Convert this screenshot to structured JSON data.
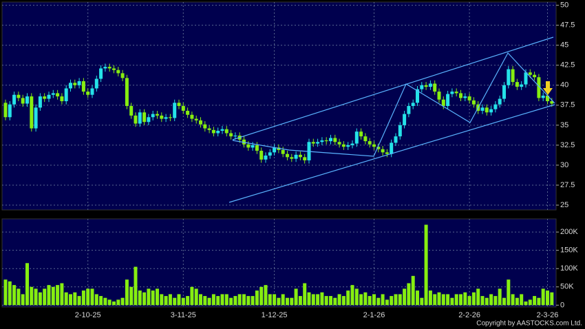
{
  "chart_data": [
    {
      "type": "candlestick",
      "open": [
        37.8,
        36.0,
        37.6,
        38.8,
        38.4,
        37.7,
        38.6,
        34.6,
        37.2,
        38.6,
        38.3,
        38.8,
        39.0,
        38.6,
        38.0,
        39.6,
        40.3,
        40.0,
        40.5,
        39.2,
        38.8,
        39.6,
        40.8,
        42.1,
        42.3,
        42.1,
        41.9,
        41.5,
        40.9,
        37.4,
        36.2,
        35.2,
        36.6,
        35.4,
        36.0,
        36.4,
        36.2,
        35.8,
        36.0,
        35.9,
        37.8,
        37.4,
        36.8,
        36.3,
        35.8,
        35.6,
        35.1,
        34.6,
        34.4,
        34.0,
        34.3,
        34.5,
        34.0,
        33.6,
        33.7,
        33.2,
        32.6,
        32.2,
        32.5,
        31.8,
        30.7,
        31.2,
        31.6,
        32.2,
        31.9,
        31.4,
        31.0,
        30.8,
        31.3,
        31.0,
        30.6,
        32.9,
        32.7,
        32.9,
        33.1,
        33.0,
        33.4,
        32.9,
        32.6,
        32.3,
        32.5,
        32.7,
        34.2,
        33.6,
        33.0,
        32.6,
        32.3,
        32.0,
        31.6,
        31.4,
        32.8,
        33.6,
        35.0,
        36.4,
        37.4,
        37.8,
        39.5,
        40.0,
        39.8,
        40.2,
        39.2,
        38.2,
        37.4,
        38.9,
        39.2,
        39.0,
        38.4,
        38.6,
        38.1,
        37.6,
        36.8,
        37.2,
        36.6,
        37.0,
        37.6,
        38.3,
        40.0,
        42.0,
        40.4,
        39.8,
        40.1,
        41.6,
        41.3,
        41.0,
        38.4,
        38.7,
        38.0
      ],
      "high": [
        38.2,
        38.0,
        39.2,
        39.2,
        38.8,
        39.0,
        39.0,
        37.6,
        39.0,
        39.0,
        39.2,
        39.4,
        39.4,
        39.0,
        40.0,
        40.7,
        40.7,
        40.9,
        40.9,
        39.6,
        40.0,
        41.2,
        42.5,
        42.7,
        42.7,
        42.5,
        42.3,
        41.9,
        41.3,
        37.8,
        36.6,
        37.0,
        37.0,
        36.4,
        36.8,
        36.8,
        36.6,
        36.4,
        36.4,
        38.2,
        38.2,
        37.8,
        37.2,
        36.7,
        36.2,
        36.0,
        35.5,
        35.0,
        34.8,
        34.7,
        34.9,
        34.9,
        34.4,
        34.1,
        34.1,
        33.6,
        33.0,
        32.9,
        32.9,
        32.2,
        31.6,
        32.0,
        32.6,
        32.6,
        32.3,
        31.8,
        31.4,
        31.7,
        31.7,
        31.4,
        33.3,
        33.3,
        33.3,
        33.5,
        33.5,
        33.8,
        33.8,
        33.3,
        33.0,
        32.9,
        33.1,
        34.6,
        34.6,
        34.0,
        33.4,
        33.0,
        32.7,
        32.4,
        32.0,
        33.2,
        34.0,
        35.4,
        36.8,
        37.8,
        38.2,
        39.9,
        40.4,
        40.4,
        40.6,
        40.6,
        39.6,
        38.6,
        39.3,
        39.6,
        39.6,
        39.4,
        39.0,
        39.0,
        38.5,
        38.0,
        37.6,
        37.6,
        37.4,
        38.0,
        38.7,
        40.4,
        42.4,
        42.4,
        40.8,
        40.5,
        42.0,
        42.0,
        41.7,
        41.4,
        39.1,
        39.1,
        38.4
      ],
      "low": [
        35.6,
        35.6,
        37.2,
        38.0,
        37.3,
        37.3,
        34.2,
        34.2,
        36.8,
        37.9,
        37.9,
        38.4,
        38.2,
        37.6,
        37.6,
        39.2,
        39.6,
        39.6,
        38.8,
        38.4,
        38.4,
        39.2,
        40.4,
        41.7,
        41.7,
        41.5,
        41.1,
        40.5,
        37.0,
        35.8,
        34.8,
        34.8,
        35.0,
        35.0,
        35.6,
        35.8,
        35.4,
        35.4,
        35.5,
        35.5,
        37.0,
        36.4,
        35.9,
        35.4,
        35.2,
        34.7,
        34.2,
        34.0,
        33.6,
        33.6,
        33.9,
        33.6,
        33.2,
        33.2,
        32.8,
        32.2,
        31.8,
        31.8,
        31.4,
        30.3,
        30.3,
        30.8,
        31.2,
        31.5,
        31.0,
        30.6,
        30.4,
        30.4,
        30.6,
        30.2,
        30.2,
        32.3,
        32.3,
        32.5,
        32.6,
        32.6,
        32.5,
        32.2,
        31.9,
        31.9,
        32.1,
        32.3,
        33.2,
        32.6,
        32.2,
        31.9,
        31.6,
        31.2,
        31.0,
        31.0,
        32.4,
        33.2,
        34.6,
        36.0,
        37.0,
        37.4,
        39.1,
        39.4,
        39.4,
        38.8,
        37.8,
        37.0,
        37.0,
        38.5,
        38.6,
        38.0,
        38.0,
        37.7,
        37.2,
        36.4,
        36.4,
        36.2,
        36.2,
        36.6,
        37.2,
        37.9,
        39.6,
        40.0,
        39.4,
        39.4,
        39.7,
        40.9,
        40.6,
        38.0,
        38.0,
        37.6,
        37.3
      ],
      "close": [
        36.0,
        37.6,
        38.8,
        38.4,
        37.7,
        38.6,
        34.6,
        37.2,
        38.6,
        38.3,
        38.8,
        39.0,
        38.6,
        38.0,
        39.6,
        40.3,
        40.0,
        40.5,
        39.2,
        38.8,
        39.6,
        40.8,
        42.1,
        42.3,
        42.1,
        41.9,
        41.5,
        40.9,
        37.4,
        36.2,
        35.2,
        36.6,
        35.4,
        36.0,
        36.4,
        36.2,
        35.8,
        36.0,
        35.9,
        37.8,
        37.4,
        36.8,
        36.3,
        35.8,
        35.6,
        35.1,
        34.6,
        34.4,
        34.0,
        34.3,
        34.5,
        34.0,
        33.6,
        33.7,
        33.2,
        32.6,
        32.2,
        32.5,
        31.8,
        30.7,
        31.2,
        31.6,
        32.2,
        31.9,
        31.4,
        31.0,
        30.8,
        31.3,
        31.0,
        30.6,
        32.9,
        32.7,
        32.9,
        33.1,
        33.0,
        33.4,
        32.9,
        32.6,
        32.3,
        32.5,
        32.7,
        34.2,
        33.6,
        33.0,
        32.6,
        32.3,
        32.0,
        31.6,
        31.4,
        32.8,
        33.6,
        35.0,
        36.4,
        37.4,
        37.8,
        39.5,
        40.0,
        39.8,
        40.2,
        39.2,
        38.2,
        37.4,
        38.9,
        39.2,
        39.0,
        38.4,
        38.6,
        38.1,
        37.6,
        36.8,
        37.2,
        36.6,
        37.0,
        37.6,
        38.3,
        40.0,
        42.0,
        40.4,
        39.8,
        40.1,
        41.6,
        41.3,
        41.0,
        38.4,
        38.7,
        38.0,
        37.7
      ],
      "up_color": "#25e2e8",
      "down_color": "#86ee10",
      "ylim": [
        24.4,
        50.4
      ],
      "yticks": [
        25,
        27.5,
        30,
        32.5,
        35,
        37.5,
        40,
        42.5,
        45,
        47.5,
        50
      ],
      "grid": true
    },
    {
      "type": "bar",
      "categories": [
        null,
        null,
        null,
        null,
        null,
        null,
        null,
        null,
        null,
        null,
        null,
        null,
        null,
        null,
        null,
        null,
        null,
        null,
        null,
        "2-10-25",
        null,
        null,
        null,
        null,
        null,
        null,
        null,
        null,
        null,
        null,
        null,
        null,
        null,
        null,
        null,
        null,
        null,
        null,
        null,
        null,
        null,
        "3-11-25",
        null,
        null,
        null,
        null,
        null,
        null,
        null,
        null,
        null,
        null,
        null,
        null,
        null,
        null,
        null,
        null,
        null,
        null,
        null,
        null,
        "1-12-25",
        null,
        null,
        null,
        null,
        null,
        null,
        null,
        null,
        null,
        null,
        null,
        null,
        null,
        null,
        null,
        null,
        null,
        null,
        null,
        null,
        null,
        null,
        "2-1-26",
        null,
        null,
        null,
        null,
        null,
        null,
        null,
        null,
        null,
        null,
        null,
        null,
        null,
        null,
        null,
        null,
        null,
        null,
        null,
        null,
        null,
        "2-2-26",
        null,
        null,
        null,
        null,
        null,
        null,
        null,
        null,
        null,
        null,
        null,
        null,
        null,
        null,
        null,
        null,
        null,
        "2-3-26",
        null
      ],
      "values": [
        70000,
        65000,
        55000,
        45000,
        30000,
        115000,
        50000,
        45000,
        35000,
        45000,
        55000,
        50000,
        55000,
        60000,
        35000,
        30000,
        35000,
        25000,
        40000,
        45000,
        45000,
        30000,
        25000,
        20000,
        15000,
        10000,
        15000,
        20000,
        70000,
        50000,
        105000,
        40000,
        35000,
        45000,
        40000,
        45000,
        30000,
        25000,
        30000,
        20000,
        30000,
        20000,
        25000,
        50000,
        45000,
        30000,
        25000,
        20000,
        30000,
        25000,
        30000,
        30000,
        20000,
        25000,
        30000,
        30000,
        25000,
        25000,
        40000,
        50000,
        55000,
        30000,
        30000,
        20000,
        30000,
        20000,
        20000,
        45000,
        25000,
        60000,
        35000,
        30000,
        30000,
        35000,
        25000,
        25000,
        20000,
        30000,
        25000,
        40000,
        55000,
        45000,
        30000,
        35000,
        25000,
        30000,
        20000,
        30000,
        15000,
        25000,
        30000,
        30000,
        45000,
        60000,
        80000,
        40000,
        20000,
        220000,
        40000,
        30000,
        35000,
        30000,
        30000,
        20000,
        30000,
        30000,
        35000,
        25000,
        35000,
        45000,
        25000,
        20000,
        30000,
        25000,
        45000,
        20000,
        70000,
        30000,
        20000,
        30000,
        10000,
        15000,
        25000,
        20000,
        45000,
        40000,
        35000
      ],
      "color": "#86ee10",
      "ylim": [
        -5000,
        236000
      ],
      "yticks": [
        0,
        {
          "value": 50000,
          "label": "50K"
        },
        {
          "value": 100000,
          "label": "100K"
        },
        {
          "value": 150000,
          "label": "150K"
        },
        {
          "value": 200000,
          "label": "200K"
        }
      ],
      "grid": true
    }
  ],
  "copyright": "Copyright by AASTOCKS.com Ltd."
}
